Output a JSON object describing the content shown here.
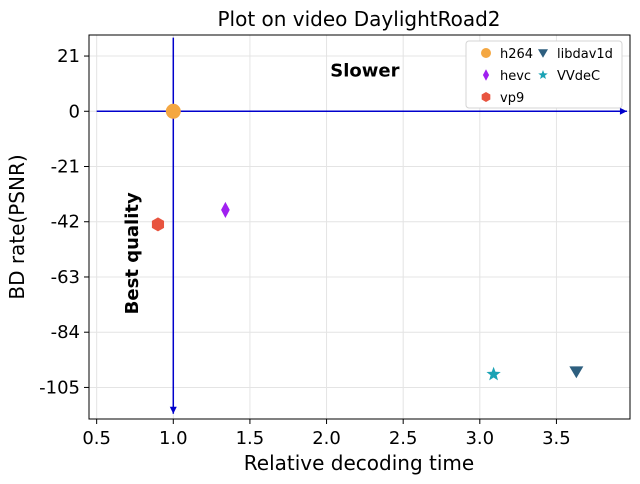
{
  "chart_data": {
    "type": "scatter",
    "title": "Plot on video DaylightRoad2",
    "xlabel": "Relative decoding time",
    "ylabel": "BD rate(PSNR)",
    "xlim": [
      0.45,
      3.98
    ],
    "ylim": [
      -117,
      29
    ],
    "xticks": [
      "0.5",
      "1.0",
      "1.5",
      "2.0",
      "2.5",
      "3.0",
      "3.5"
    ],
    "yticks": [
      "21",
      "0",
      "-21",
      "-42",
      "-63",
      "-84",
      "-105"
    ],
    "grid": true,
    "legend_position": "top-right",
    "series": [
      {
        "name": "h264",
        "x": 1.0,
        "y": 0,
        "marker": "circle",
        "color": "#f4a742"
      },
      {
        "name": "hevc",
        "x": 1.34,
        "y": -37.5,
        "marker": "diamond",
        "color": "#a020f0"
      },
      {
        "name": "vp9",
        "x": 0.9,
        "y": -43,
        "marker": "hexagon",
        "color": "#e8543f"
      },
      {
        "name": "libdav1d",
        "x": 3.63,
        "y": -99,
        "marker": "triangle-down",
        "color": "#2e5f7f"
      },
      {
        "name": "VVdeC",
        "x": 3.09,
        "y": -100,
        "marker": "star",
        "color": "#1aa3b5"
      }
    ],
    "annotations": [
      {
        "text": "Slower",
        "x": 2.25,
        "y": 15.5
      },
      {
        "text": "Best quality",
        "x": 0.73,
        "y": -54
      }
    ],
    "arrows": [
      {
        "from": [
          0.5,
          0
        ],
        "to": [
          3.96,
          0
        ],
        "color": "#0000cc"
      },
      {
        "from": [
          1.0,
          28
        ],
        "to": [
          1.0,
          -115
        ],
        "color": "#0000cc"
      }
    ]
  }
}
